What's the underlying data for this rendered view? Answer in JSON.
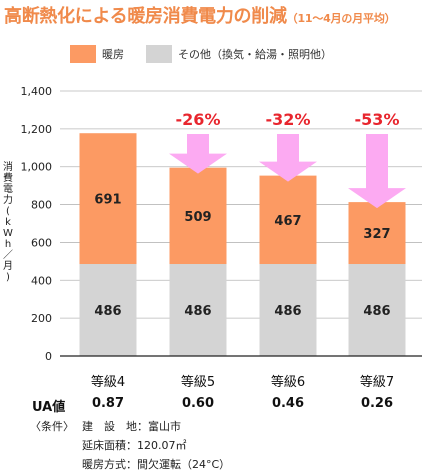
{
  "title": {
    "main": "高断熱化による暖房消費電力の削減",
    "sub": "（11～4月の月平均）"
  },
  "legend": {
    "items": [
      {
        "label": "暖房",
        "color": "#fc9a63"
      },
      {
        "label": "その他（換気・給湯・照明他）",
        "color": "#d4d4d4"
      }
    ]
  },
  "ylabel_chars": [
    "消",
    "費",
    "電",
    "力",
    "(",
    "k",
    "W",
    "h",
    "／",
    "月",
    ")"
  ],
  "ua": {
    "label": "UA値",
    "values": [
      "0.87",
      "0.60",
      "0.46",
      "0.26"
    ]
  },
  "conditions": {
    "tag": "〈条件〉",
    "lines": [
      "建　設　地：富山市",
      "延床面積：120.07㎡",
      "暖房方式：間欠運転（24°C）"
    ]
  },
  "chart_data": {
    "type": "bar",
    "stacked": true,
    "categories": [
      "等級4",
      "等級5",
      "等級6",
      "等級7"
    ],
    "series": [
      {
        "name": "その他（換気・給湯・照明他）",
        "values": [
          486,
          486,
          486,
          486
        ],
        "color": "#d4d4d4"
      },
      {
        "name": "暖房",
        "values": [
          691,
          509,
          467,
          327
        ],
        "color": "#fc9a63"
      }
    ],
    "reduction_labels": [
      "",
      "-26%",
      "-32%",
      "-53%"
    ],
    "ylabel": "消費電力(kWh／月)",
    "ylim": [
      0,
      1400
    ],
    "yticks": [
      0,
      200,
      400,
      600,
      800,
      1000,
      1200,
      1400
    ],
    "ytick_labels": [
      "0",
      "200",
      "400",
      "600",
      "800",
      "1,000",
      "1,200",
      "1,400"
    ],
    "grid": true,
    "arrow_color": "#fcaaf2",
    "reduction_color": "#e8262e"
  }
}
